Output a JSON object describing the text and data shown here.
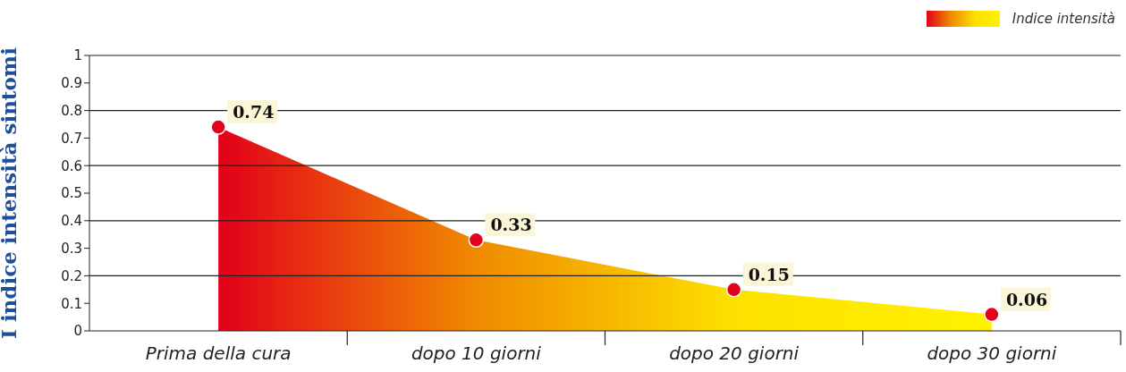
{
  "chart_data": {
    "type": "area",
    "ylabel": "I indice intensità sintomi",
    "categories": [
      "Prima della cura",
      "dopo 10 giorni",
      "dopo 20 giorni",
      "dopo 30 giorni"
    ],
    "series": [
      {
        "name": "Indice intensità",
        "color": "#e2001a",
        "colors": [
          "#e2001a",
          "#f08a00",
          "#fde100",
          "#fff200"
        ],
        "values": [
          0.74,
          0.33,
          0.15,
          0.06
        ]
      }
    ],
    "ylim": [
      0,
      1
    ],
    "yticks": [
      0,
      0.1,
      0.2,
      0.3,
      0.4,
      0.5,
      0.6,
      0.7,
      0.8,
      0.9,
      1
    ],
    "grid": "y",
    "legend": "top right",
    "marker": "circle",
    "data_labels": true
  }
}
